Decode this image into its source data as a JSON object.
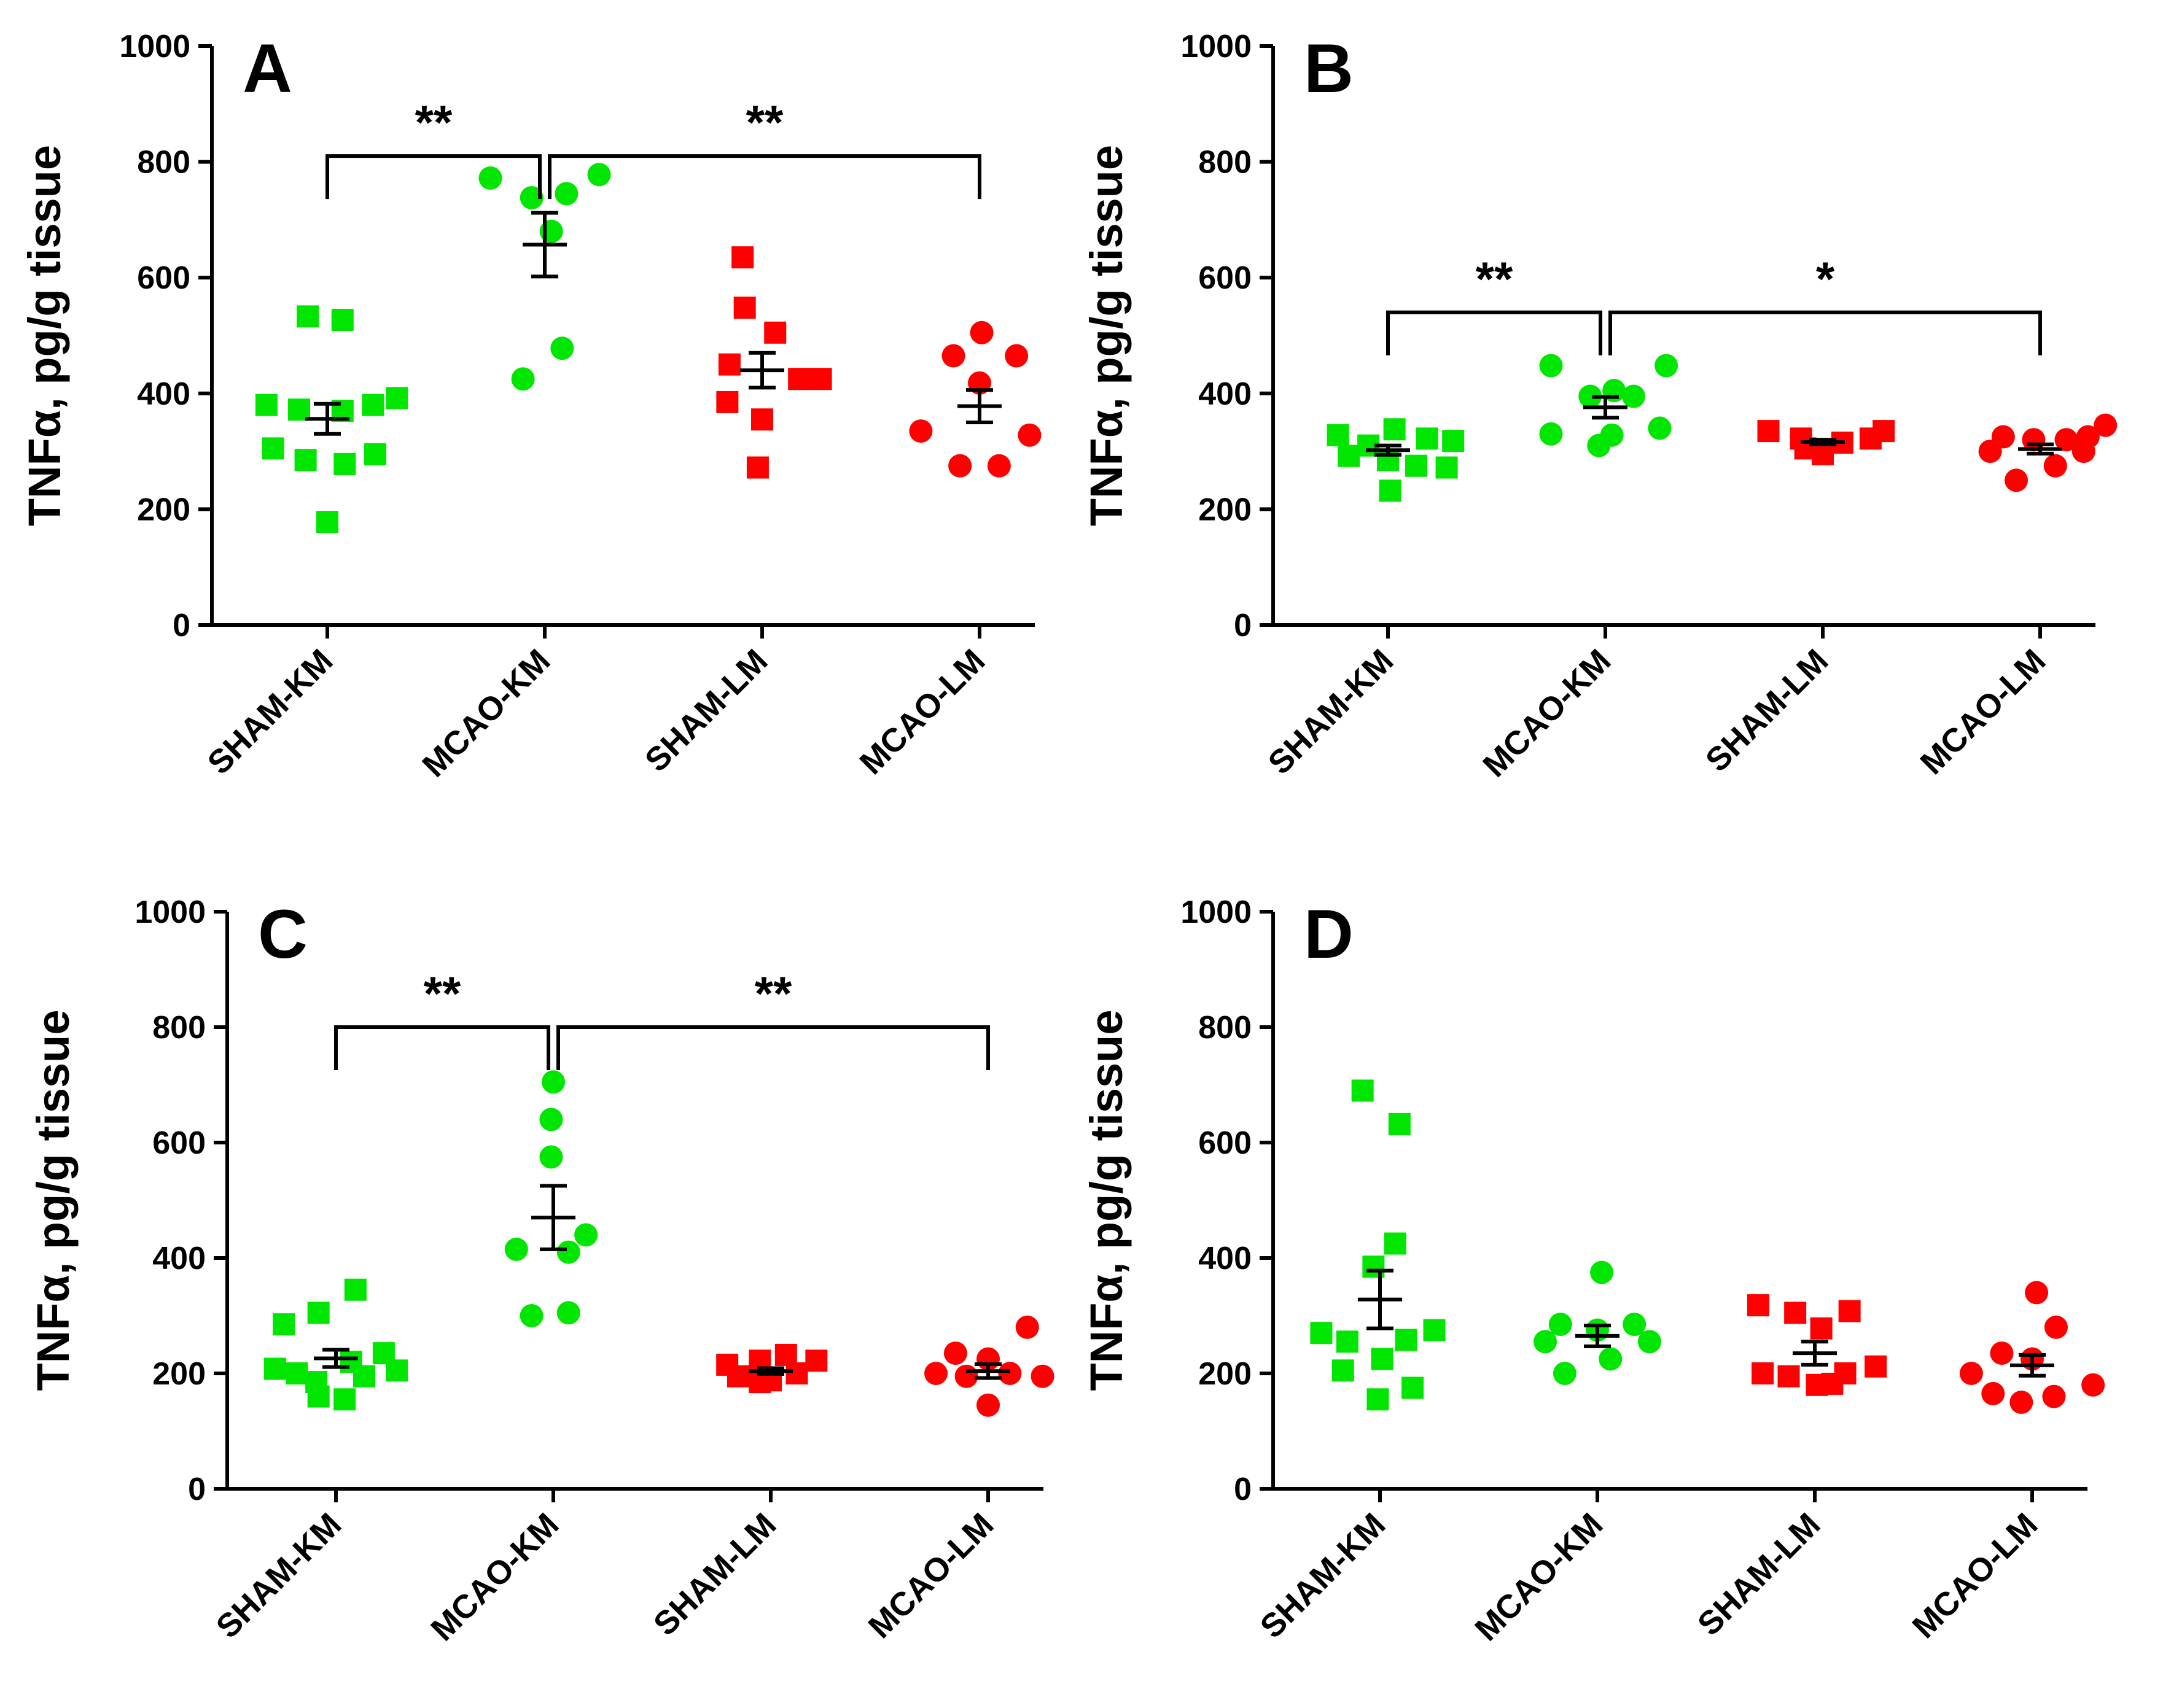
{
  "figure": {
    "colors": {
      "green": "#00e600",
      "red": "#ff0000",
      "axis": "#000000"
    }
  },
  "chart_data": [
    {
      "panel": "A",
      "type": "scatter",
      "ylabel": "TNFα, pg/g tissue",
      "ylim": [
        0,
        1000
      ],
      "yticks": [
        0,
        200,
        400,
        600,
        800,
        1000
      ],
      "categories": [
        "SHAM-KM",
        "MCAO-KM",
        "SHAM-LM",
        "MCAO-LM"
      ],
      "groups": [
        {
          "name": "SHAM-KM",
          "color": "green",
          "marker": "square",
          "mean": 356,
          "sem": 26,
          "points": [
            [
              -0.28,
              380
            ],
            [
              -0.13,
              372
            ],
            [
              0.07,
              370
            ],
            [
              0.21,
              380
            ],
            [
              0.32,
              392
            ],
            [
              -0.25,
              305
            ],
            [
              -0.1,
              285
            ],
            [
              0.08,
              278
            ],
            [
              0.22,
              295
            ],
            [
              0.0,
              178
            ],
            [
              -0.09,
              533
            ],
            [
              0.07,
              527
            ]
          ]
        },
        {
          "name": "MCAO-KM",
          "color": "green",
          "marker": "circle",
          "mean": 657,
          "sem": 55,
          "points": [
            [
              -0.25,
              772
            ],
            [
              -0.06,
              738
            ],
            [
              0.1,
              745
            ],
            [
              0.25,
              778
            ],
            [
              0.03,
              680
            ],
            [
              0.08,
              478
            ],
            [
              -0.1,
              425
            ]
          ]
        },
        {
          "name": "SHAM-LM",
          "color": "red",
          "marker": "square",
          "mean": 440,
          "sem": 30,
          "points": [
            [
              -0.09,
              635
            ],
            [
              -0.08,
              548
            ],
            [
              0.06,
              505
            ],
            [
              -0.15,
              450
            ],
            [
              0.17,
              425
            ],
            [
              0.27,
              425
            ],
            [
              -0.16,
              385
            ],
            [
              0.0,
              355
            ],
            [
              -0.02,
              272
            ]
          ]
        },
        {
          "name": "MCAO-LM",
          "color": "red",
          "marker": "circle",
          "mean": 378,
          "sem": 28,
          "points": [
            [
              -0.12,
              465
            ],
            [
              0.01,
              505
            ],
            [
              0.17,
              465
            ],
            [
              0.0,
              418
            ],
            [
              -0.27,
              335
            ],
            [
              0.23,
              328
            ],
            [
              -0.09,
              275
            ],
            [
              0.09,
              275
            ]
          ]
        }
      ],
      "brackets": [
        {
          "from": "SHAM-KM",
          "to": "MCAO-KM",
          "label": "**"
        },
        {
          "from": "MCAO-KM",
          "to": "MCAO-LM",
          "label": "**"
        }
      ]
    },
    {
      "panel": "B",
      "type": "scatter",
      "ylabel": "TNFα, pg/g tissue",
      "ylim": [
        0,
        1000
      ],
      "yticks": [
        0,
        200,
        400,
        600,
        800,
        1000
      ],
      "categories": [
        "SHAM-KM",
        "MCAO-KM",
        "SHAM-LM",
        "MCAO-LM"
      ],
      "groups": [
        {
          "name": "SHAM-KM",
          "color": "green",
          "marker": "square",
          "mean": 302,
          "sem": 8,
          "points": [
            [
              -0.23,
              328
            ],
            [
              -0.09,
              310
            ],
            [
              0.03,
              338
            ],
            [
              0.18,
              322
            ],
            [
              0.3,
              318
            ],
            [
              -0.18,
              292
            ],
            [
              0.0,
              285
            ],
            [
              0.13,
              275
            ],
            [
              0.27,
              272
            ],
            [
              0.01,
              232
            ]
          ]
        },
        {
          "name": "MCAO-KM",
          "color": "green",
          "marker": "circle",
          "mean": 376,
          "sem": 18,
          "points": [
            [
              -0.25,
              448
            ],
            [
              0.28,
              448
            ],
            [
              -0.07,
              395
            ],
            [
              0.04,
              405
            ],
            [
              0.13,
              395
            ],
            [
              -0.25,
              330
            ],
            [
              0.03,
              328
            ],
            [
              0.25,
              340
            ],
            [
              -0.03,
              310
            ]
          ]
        },
        {
          "name": "SHAM-LM",
          "color": "red",
          "marker": "square",
          "mean": 316,
          "sem": 4,
          "points": [
            [
              -0.25,
              335
            ],
            [
              -0.1,
              322
            ],
            [
              0.09,
              315
            ],
            [
              0.22,
              322
            ],
            [
              0.28,
              335
            ],
            [
              -0.08,
              305
            ],
            [
              0.0,
              295
            ]
          ]
        },
        {
          "name": "MCAO-LM",
          "color": "red",
          "marker": "circle",
          "mean": 304,
          "sem": 8,
          "points": [
            [
              -0.17,
              325
            ],
            [
              -0.03,
              320
            ],
            [
              0.12,
              320
            ],
            [
              0.22,
              325
            ],
            [
              0.3,
              345
            ],
            [
              -0.23,
              300
            ],
            [
              0.2,
              300
            ],
            [
              -0.11,
              250
            ],
            [
              0.07,
              275
            ]
          ]
        }
      ],
      "brackets": [
        {
          "from": "SHAM-KM",
          "to": "MCAO-KM",
          "label": "**"
        },
        {
          "from": "MCAO-KM",
          "to": "MCAO-LM",
          "label": "*"
        }
      ]
    },
    {
      "panel": "C",
      "type": "scatter",
      "ylabel": "TNFα, pg/g tissue",
      "ylim": [
        0,
        1000
      ],
      "yticks": [
        0,
        200,
        400,
        600,
        800,
        1000
      ],
      "categories": [
        "SHAM-KM",
        "MCAO-KM",
        "SHAM-LM",
        "MCAO-LM"
      ],
      "groups": [
        {
          "name": "SHAM-KM",
          "color": "green",
          "marker": "square",
          "mean": 226,
          "sem": 15,
          "points": [
            [
              0.09,
              345
            ],
            [
              -0.08,
              305
            ],
            [
              -0.24,
              285
            ],
            [
              -0.28,
              208
            ],
            [
              -0.18,
              200
            ],
            [
              0.07,
              220
            ],
            [
              0.22,
              235
            ],
            [
              0.28,
              205
            ],
            [
              -0.09,
              185
            ],
            [
              -0.08,
              160
            ],
            [
              0.04,
              155
            ],
            [
              0.13,
              195
            ]
          ]
        },
        {
          "name": "MCAO-KM",
          "color": "green",
          "marker": "circle",
          "mean": 470,
          "sem": 55,
          "points": [
            [
              0.0,
              705
            ],
            [
              -0.01,
              640
            ],
            [
              -0.01,
              575
            ],
            [
              -0.17,
              415
            ],
            [
              0.15,
              440
            ],
            [
              0.07,
              410
            ],
            [
              -0.1,
              300
            ],
            [
              0.07,
              305
            ]
          ]
        },
        {
          "name": "SHAM-LM",
          "color": "red",
          "marker": "square",
          "mean": 204,
          "sem": 5,
          "points": [
            [
              -0.2,
              215
            ],
            [
              -0.05,
              222
            ],
            [
              0.07,
              232
            ],
            [
              0.21,
              222
            ],
            [
              -0.15,
              195
            ],
            [
              0.0,
              188
            ],
            [
              0.12,
              200
            ],
            [
              -0.05,
              185
            ]
          ]
        },
        {
          "name": "MCAO-LM",
          "color": "red",
          "marker": "circle",
          "mean": 204,
          "sem": 12,
          "points": [
            [
              -0.15,
              235
            ],
            [
              0.0,
              225
            ],
            [
              0.18,
              280
            ],
            [
              -0.24,
              200
            ],
            [
              -0.1,
              195
            ],
            [
              0.1,
              200
            ],
            [
              0.25,
              195
            ],
            [
              0.0,
              145
            ]
          ]
        }
      ],
      "brackets": [
        {
          "from": "SHAM-KM",
          "to": "MCAO-KM",
          "label": "**"
        },
        {
          "from": "MCAO-KM",
          "to": "MCAO-LM",
          "label": "**"
        }
      ]
    },
    {
      "panel": "D",
      "type": "scatter",
      "ylabel": "TNFα, pg/g tissue",
      "ylim": [
        0,
        1000
      ],
      "yticks": [
        0,
        200,
        400,
        600,
        800,
        1000
      ],
      "categories": [
        "SHAM-KM",
        "MCAO-KM",
        "SHAM-LM",
        "MCAO-LM"
      ],
      "groups": [
        {
          "name": "SHAM-KM",
          "color": "green",
          "marker": "square",
          "mean": 328,
          "sem": 50,
          "points": [
            [
              -0.08,
              690
            ],
            [
              0.09,
              632
            ],
            [
              0.07,
              425
            ],
            [
              -0.03,
              385
            ],
            [
              -0.27,
              270
            ],
            [
              -0.15,
              255
            ],
            [
              0.12,
              258
            ],
            [
              0.25,
              275
            ],
            [
              -0.17,
              205
            ],
            [
              0.01,
              225
            ],
            [
              -0.01,
              155
            ],
            [
              0.15,
              175
            ]
          ]
        },
        {
          "name": "MCAO-KM",
          "color": "green",
          "marker": "circle",
          "mean": 265,
          "sem": 18,
          "points": [
            [
              0.02,
              375
            ],
            [
              -0.17,
              285
            ],
            [
              0.0,
              275
            ],
            [
              0.17,
              285
            ],
            [
              -0.24,
              255
            ],
            [
              0.24,
              255
            ],
            [
              -0.15,
              200
            ],
            [
              0.06,
              225
            ]
          ]
        },
        {
          "name": "SHAM-LM",
          "color": "red",
          "marker": "square",
          "mean": 235,
          "sem": 20,
          "points": [
            [
              -0.26,
              318
            ],
            [
              -0.09,
              305
            ],
            [
              0.03,
              278
            ],
            [
              0.16,
              308
            ],
            [
              -0.24,
              200
            ],
            [
              -0.12,
              195
            ],
            [
              0.01,
              180
            ],
            [
              0.14,
              200
            ],
            [
              0.28,
              212
            ],
            [
              0.08,
              182
            ]
          ]
        },
        {
          "name": "MCAO-LM",
          "color": "red",
          "marker": "circle",
          "mean": 214,
          "sem": 18,
          "points": [
            [
              0.02,
              340
            ],
            [
              -0.14,
              235
            ],
            [
              0.11,
              280
            ],
            [
              -0.28,
              200
            ],
            [
              0.0,
              225
            ],
            [
              0.28,
              180
            ],
            [
              -0.18,
              165
            ],
            [
              -0.05,
              150
            ],
            [
              0.1,
              160
            ]
          ]
        }
      ],
      "brackets": []
    }
  ]
}
